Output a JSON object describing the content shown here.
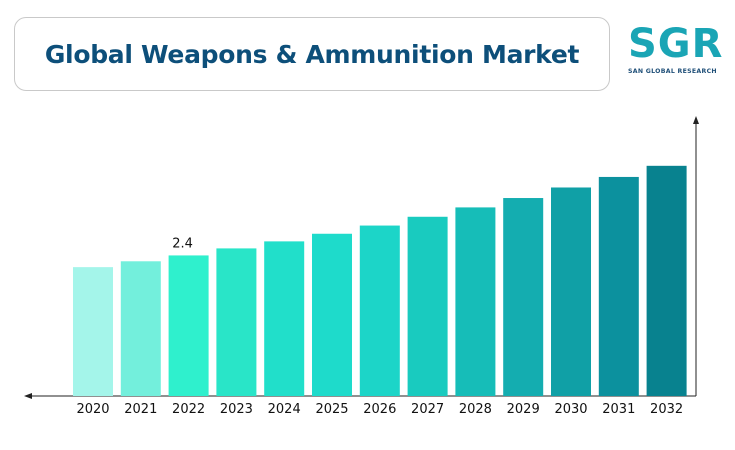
{
  "title": "Global Weapons & Ammunition Market",
  "logo": {
    "letters": "SGR",
    "tagline": "SAN GLOBAL RESEARCH"
  },
  "colors": {
    "title": "#0d4f7a",
    "logo": "#1aa5b5",
    "logo_sub": "#1f4f78",
    "axis": "#222222"
  },
  "chart_data": {
    "type": "bar",
    "categories": [
      "2020",
      "2021",
      "2022",
      "2023",
      "2024",
      "2025",
      "2026",
      "2027",
      "2028",
      "2029",
      "2030",
      "2031",
      "2032"
    ],
    "values": [
      2.2,
      2.3,
      2.4,
      2.52,
      2.64,
      2.77,
      2.91,
      3.06,
      3.22,
      3.38,
      3.56,
      3.74,
      3.93
    ],
    "data_labels": [
      {
        "index": 2,
        "text": "2.4"
      }
    ],
    "bar_colors": [
      "#a4f5ea",
      "#73efdc",
      "#2ff0cd",
      "#29e5c8",
      "#21dfca",
      "#1edbcb",
      "#1cd5c8",
      "#19cbbf",
      "#16bdb8",
      "#14adb0",
      "#10a0a6",
      "#0c919e",
      "#08828f"
    ],
    "ylim": [
      0,
      4.2
    ],
    "grid": false,
    "legend": "none"
  }
}
